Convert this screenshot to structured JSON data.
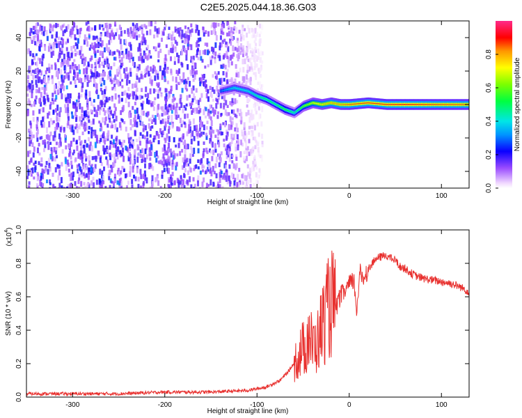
{
  "title": "C2E5.2025.044.18.36.G03",
  "chart_data": [
    {
      "type": "heatmap",
      "title": "C2E5.2025.044.18.36.G03",
      "xlabel": "Height of straight line (km)",
      "ylabel": "Frequency (Hz)",
      "xlim": [
        -350,
        130
      ],
      "ylim": [
        -50,
        50
      ],
      "x_ticks": [
        "-300",
        "-200",
        "-100",
        "0",
        "100"
      ],
      "y_ticks": [
        "-40",
        "-20",
        "0",
        "20",
        "40"
      ],
      "colorbar": {
        "label": "Normalized spectral amplitude",
        "range": [
          0,
          1
        ],
        "ticks": [
          "0.0",
          "0.2",
          "0.4",
          "0.6",
          "0.8"
        ]
      },
      "signal_trace": {
        "x": [
          -140,
          -125,
          -110,
          -100,
          -90,
          -80,
          -70,
          -60,
          -50,
          -40,
          -30,
          -20,
          -10,
          0,
          20,
          40,
          60,
          80,
          100,
          130
        ],
        "y": [
          8,
          10,
          8,
          5,
          3,
          0,
          -3,
          -5,
          -1,
          1,
          0,
          1,
          0,
          0,
          1,
          0,
          0,
          0,
          0,
          0
        ],
        "amplitude": [
          0.3,
          0.4,
          0.4,
          0.45,
          0.5,
          0.5,
          0.55,
          0.45,
          0.6,
          0.7,
          0.75,
          0.8,
          0.82,
          0.85,
          0.87,
          0.88,
          0.9,
          0.88,
          0.86,
          0.85
        ]
      },
      "noise_region": {
        "x": [
          -350,
          -95
        ],
        "level": 0.15
      }
    },
    {
      "type": "line",
      "xlabel": "Height of straight line (km)",
      "ylabel": "SNR (10 * v/v)",
      "scale_label": "(x10",
      "scale_exp": "4",
      "xlim": [
        -350,
        130
      ],
      "ylim": [
        0,
        1
      ],
      "x_ticks": [
        "-300",
        "-200",
        "-100",
        "0",
        "100"
      ],
      "y_ticks": [
        "0.0",
        "0.2",
        "0.4",
        "0.6",
        "0.8",
        "1.0"
      ],
      "color": "#e8302e",
      "series": [
        {
          "x": [
            -350,
            -250,
            -200,
            -150,
            -110,
            -90,
            -75,
            -65,
            -58,
            -52,
            -47,
            -44,
            -40,
            -35,
            -30,
            -25,
            -20,
            -18,
            -15,
            -10,
            -5,
            0,
            5,
            8,
            10,
            12,
            15,
            20,
            25,
            30,
            35,
            40,
            45,
            50,
            55,
            60,
            70,
            80,
            90,
            100,
            110,
            120,
            130
          ],
          "y": [
            0.02,
            0.02,
            0.03,
            0.03,
            0.04,
            0.06,
            0.1,
            0.16,
            0.22,
            0.28,
            0.3,
            0.4,
            0.3,
            0.32,
            0.42,
            0.5,
            0.55,
            0.57,
            0.52,
            0.6,
            0.63,
            0.67,
            0.7,
            0.52,
            0.65,
            0.74,
            0.71,
            0.76,
            0.8,
            0.83,
            0.84,
            0.85,
            0.83,
            0.82,
            0.78,
            0.77,
            0.73,
            0.71,
            0.7,
            0.69,
            0.68,
            0.66,
            0.63
          ]
        }
      ]
    }
  ]
}
